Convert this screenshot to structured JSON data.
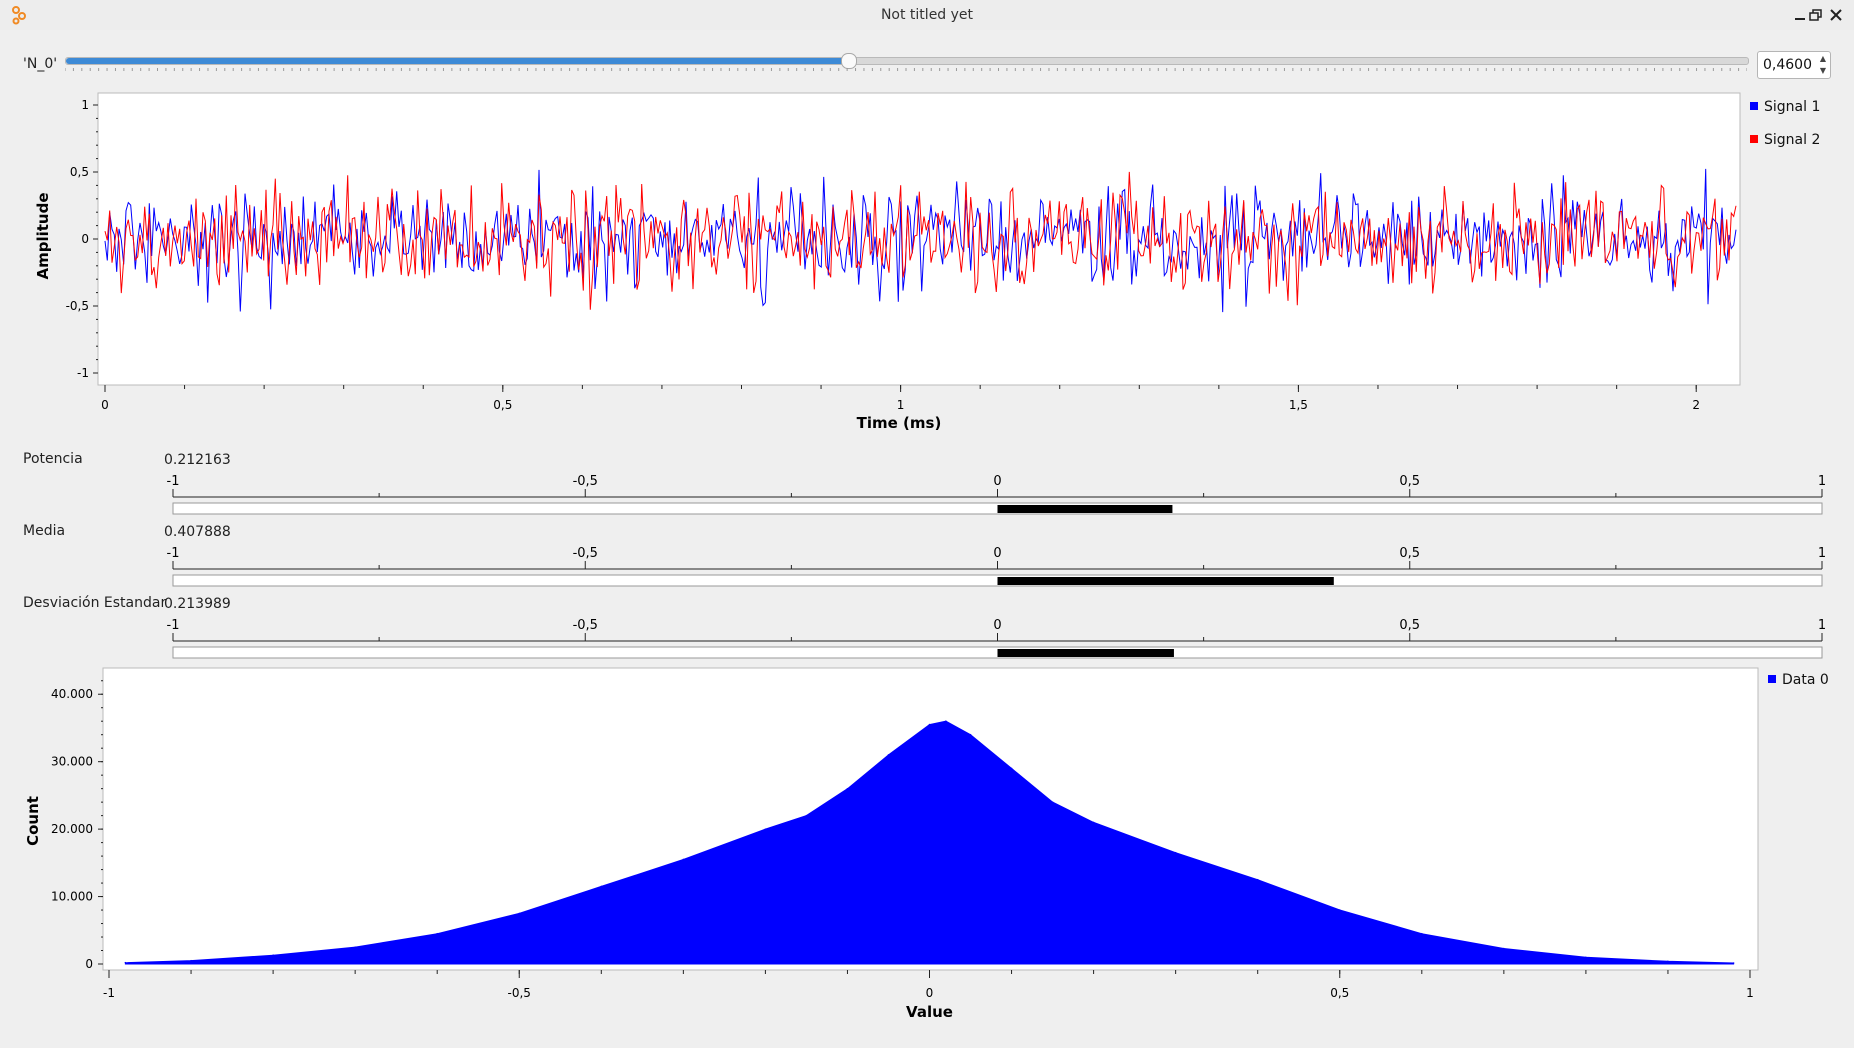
{
  "window": {
    "title": "Not titled yet",
    "buttons": [
      "minimize",
      "restore",
      "close"
    ]
  },
  "slider": {
    "label": "'N_0'",
    "value_text": "0,4600",
    "fraction": 0.465
  },
  "time_plot": {
    "xlabel": "Time (ms)",
    "ylabel": "Amplitude",
    "xticks": [
      "0",
      "0,5",
      "1",
      "1,5",
      "2"
    ],
    "yticks": [
      "1",
      "0,5",
      "0",
      "-0,5",
      "-1"
    ],
    "xlim": [
      0,
      2.05
    ],
    "ylim": [
      -1,
      1
    ],
    "legend": [
      {
        "name": "Signal 1",
        "color": "#0000ff"
      },
      {
        "name": "Signal 2",
        "color": "#ff0000"
      }
    ]
  },
  "bars": [
    {
      "label": "Potencia",
      "value_text": "0.212163",
      "value": 0.212163
    },
    {
      "label": "Media",
      "value_text": "0.407888",
      "value": 0.407888
    },
    {
      "label": "Desviación Estandar",
      "value_text": "0.213989",
      "value": 0.213989
    }
  ],
  "bar_ticks": [
    "-1",
    "-0,5",
    "0",
    "0,5",
    "1"
  ],
  "chart_data": {
    "type": "area",
    "xlabel": "Value",
    "ylabel": "Count",
    "xlim": [
      -1,
      1
    ],
    "ylim": [
      0,
      43000
    ],
    "xticks": [
      "-1",
      "-0,5",
      "0",
      "0,5",
      "1"
    ],
    "yticks": [
      "40.000",
      "30.000",
      "20.000",
      "10.000",
      "0"
    ],
    "legend": "Data 0",
    "color": "#0000ff",
    "x": [
      -0.98,
      -0.9,
      -0.8,
      -0.7,
      -0.6,
      -0.5,
      -0.4,
      -0.3,
      -0.2,
      -0.15,
      -0.1,
      -0.05,
      0.0,
      0.02,
      0.05,
      0.1,
      0.15,
      0.2,
      0.3,
      0.4,
      0.5,
      0.6,
      0.7,
      0.8,
      0.9,
      0.98
    ],
    "y": [
      200,
      500,
      1300,
      2500,
      4500,
      7500,
      11500,
      15500,
      20000,
      22000,
      26000,
      31000,
      35500,
      36000,
      34000,
      29000,
      24000,
      21000,
      16500,
      12500,
      8000,
      4500,
      2300,
      1000,
      400,
      150
    ]
  }
}
